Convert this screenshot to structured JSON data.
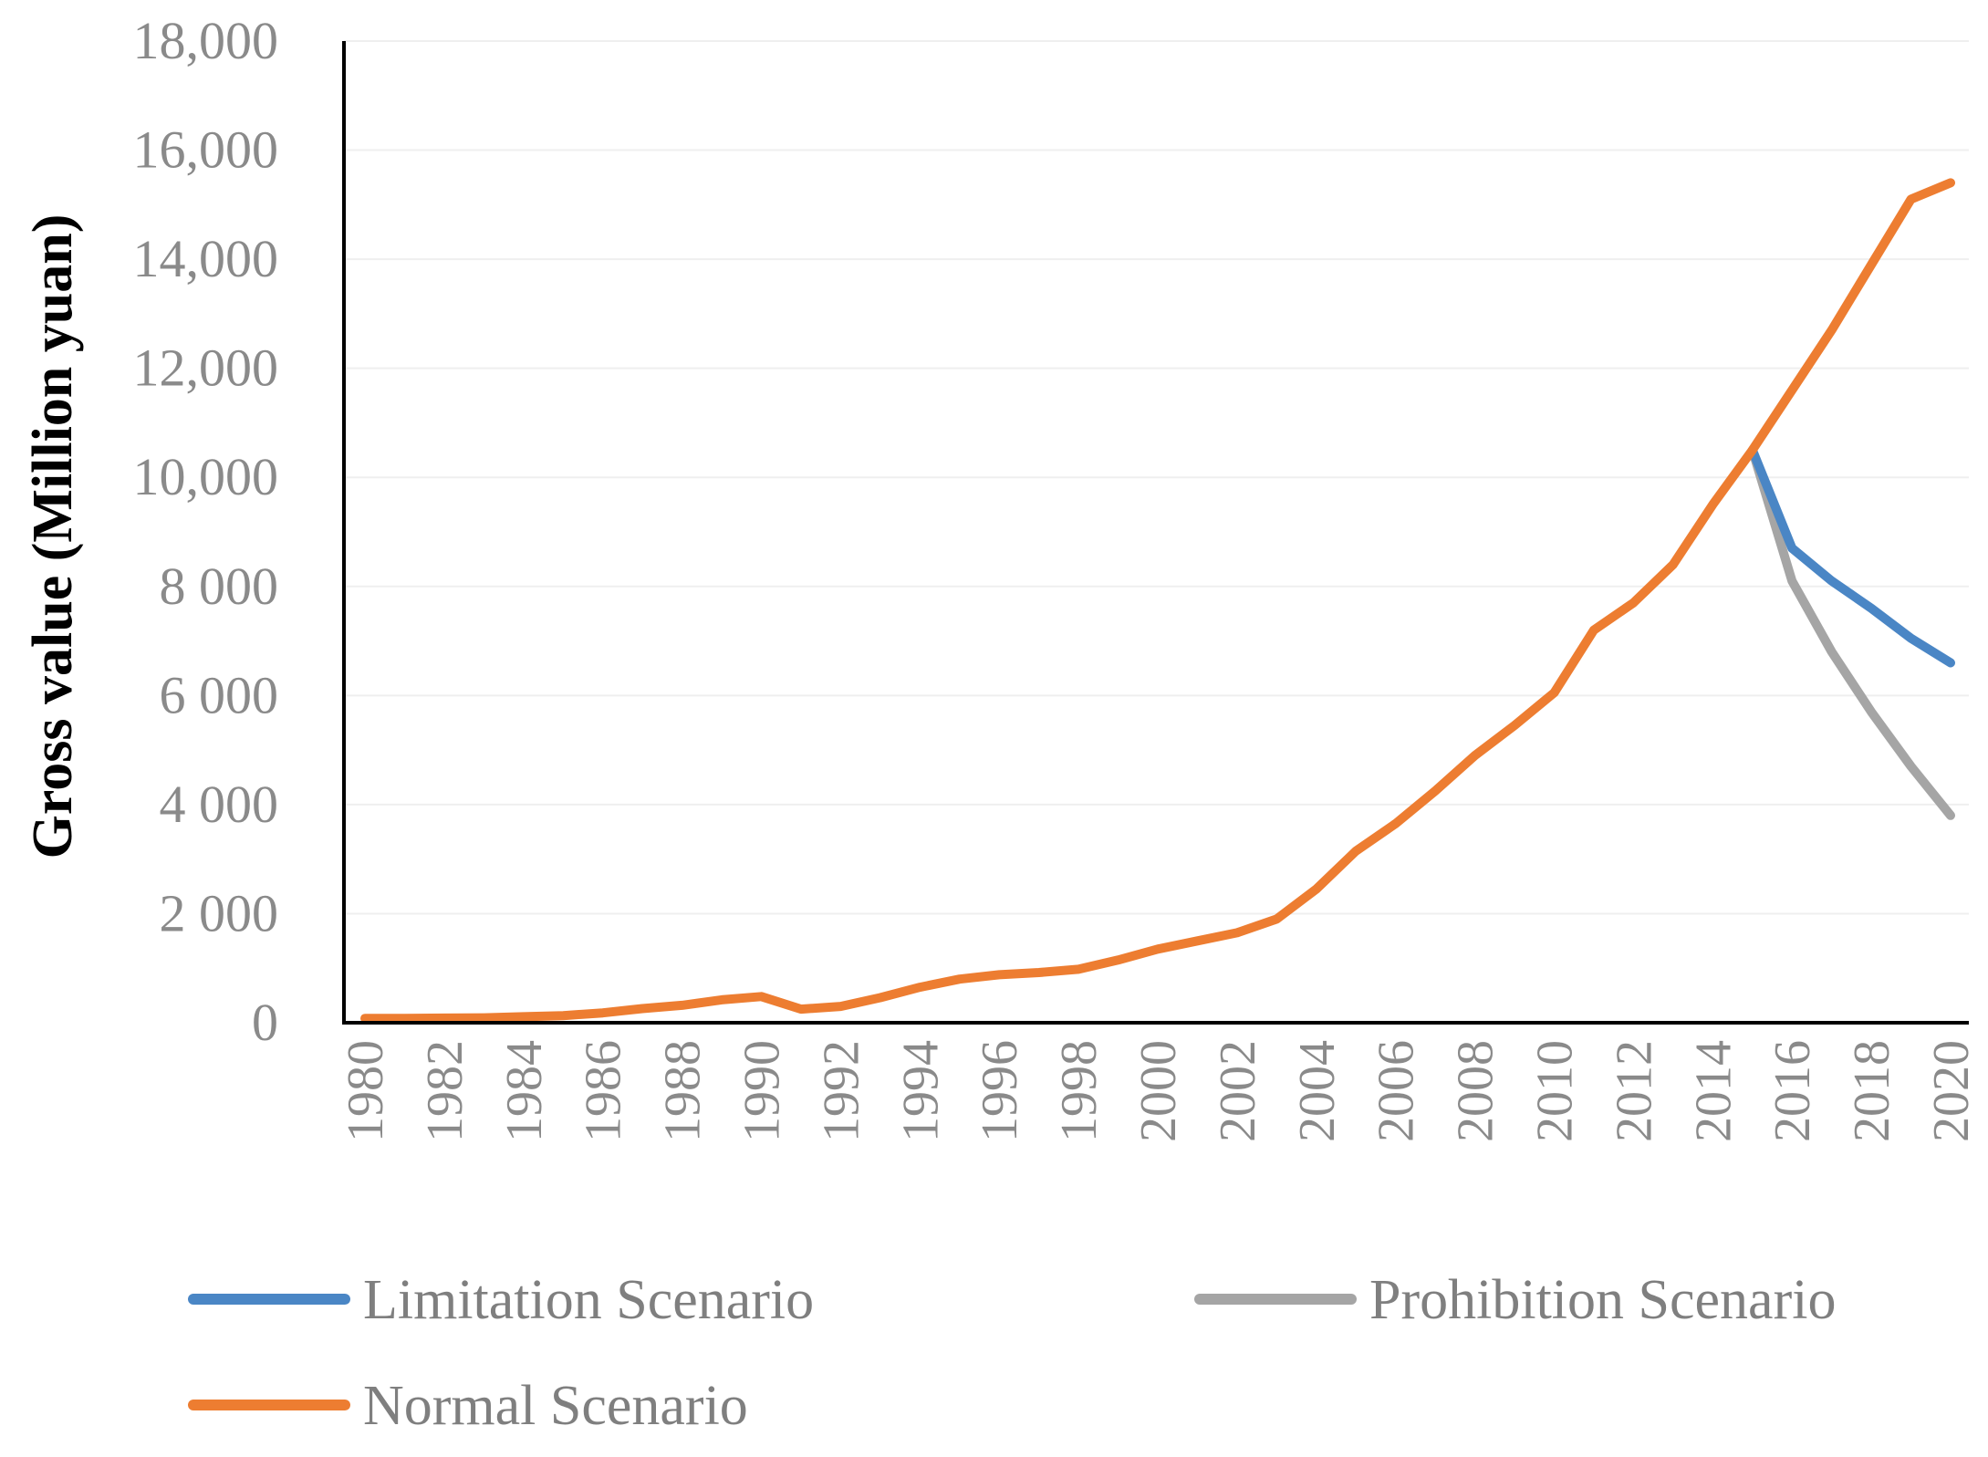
{
  "chart_data": {
    "type": "line",
    "title": "",
    "xlabel": "",
    "ylabel": "Gross value (Million yuan)",
    "ylim": [
      0,
      18000
    ],
    "xlim": [
      1980,
      2020
    ],
    "x_tick_labels": [
      "1980",
      "1982",
      "1984",
      "1986",
      "1988",
      "1990",
      "1992",
      "1994",
      "1996",
      "1998",
      "2000",
      "2002",
      "2004",
      "2006",
      "2008",
      "2010",
      "2012",
      "2014",
      "2016",
      "2018",
      "2020"
    ],
    "y_tick_labels": [
      "0",
      "2 000",
      "4 000",
      "6 000",
      "8 000",
      "10,000",
      "12,000",
      "14,000",
      "16,000",
      "18,000"
    ],
    "grid": true,
    "legend_position": "bottom",
    "series": [
      {
        "name": "Limitation Scenario",
        "color": "#4a86c5",
        "x": [
          2015,
          2016,
          2017,
          2018,
          2019,
          2020
        ],
        "values": [
          10500,
          8700,
          8100,
          7600,
          7050,
          6600
        ]
      },
      {
        "name": "Prohibition Scenario",
        "color": "#a5a5a5",
        "x": [
          2015,
          2016,
          2017,
          2018,
          2019,
          2020
        ],
        "values": [
          10500,
          8100,
          6800,
          5700,
          4700,
          3800
        ]
      },
      {
        "name": "Normal Scenario",
        "color": "#ed7d31",
        "x": [
          1980,
          1981,
          1982,
          1983,
          1984,
          1985,
          1986,
          1987,
          1988,
          1989,
          1990,
          1991,
          1992,
          1993,
          1994,
          1995,
          1996,
          1997,
          1998,
          1999,
          2000,
          2001,
          2002,
          2003,
          2004,
          2005,
          2006,
          2007,
          2008,
          2009,
          2010,
          2011,
          2012,
          2013,
          2014,
          2015,
          2016,
          2017,
          2018,
          2019,
          2020
        ],
        "values": [
          80,
          80,
          85,
          90,
          110,
          130,
          180,
          260,
          320,
          420,
          480,
          250,
          300,
          460,
          650,
          800,
          880,
          920,
          980,
          1150,
          1350,
          1500,
          1650,
          1900,
          2450,
          3150,
          3650,
          4250,
          4900,
          5450,
          6050,
          7200,
          7700,
          8400,
          9500,
          10500,
          11600,
          12700,
          13900,
          15100,
          15400
        ]
      }
    ]
  }
}
